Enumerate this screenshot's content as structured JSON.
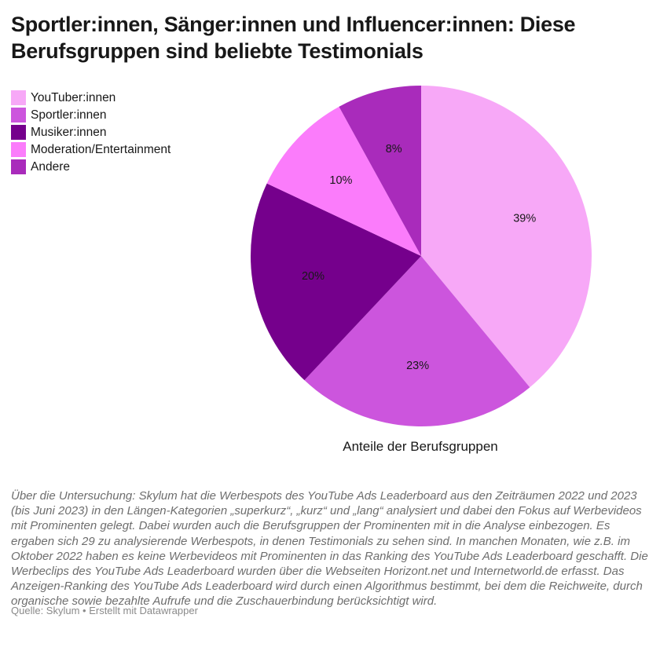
{
  "header": {
    "title": "Sportler:innen, Sänger:innen und Influencer:innen: Diese Berufsgruppen sind beliebte Testimonials"
  },
  "chart_data": {
    "type": "pie",
    "title": "Sportler:innen, Sänger:innen und Influencer:innen: Diese Berufsgruppen sind beliebte Testimonials",
    "label": "Anteile der Berufsgruppen",
    "legend_position": "top-left",
    "slices": [
      {
        "name": "YouTuber:innen",
        "value": 39,
        "label": "39%",
        "color": "#f7a8f7"
      },
      {
        "name": "Sportler:innen",
        "value": 23,
        "label": "23%",
        "color": "#cc55dd"
      },
      {
        "name": "Musiker:innen",
        "value": 20,
        "label": "20%",
        "color": "#75008c"
      },
      {
        "name": "Moderation/Entertainment",
        "value": 10,
        "label": "10%",
        "color": "#fb7cfb"
      },
      {
        "name": "Andere",
        "value": 8,
        "label": "8%",
        "color": "#a92bbb"
      }
    ]
  },
  "notes": "Über die Untersuchung: Skylum hat die Werbespots des YouTube Ads Leaderboard aus den Zeiträumen 2022 und 2023 (bis Juni 2023) in den Längen-Kategorien „superkurz“, „kurz“ und „lang“ analysiert und dabei den Fokus auf Werbevideos mit Prominenten gelegt. Dabei wurden auch die Berufsgruppen der Prominenten mit in die Analyse einbezogen. Es ergaben sich 29 zu analysierende Werbespots, in denen Testimonials zu sehen sind. In manchen Monaten, wie z.B. im Oktober 2022 haben es keine Werbevideos mit Prominenten in das Ranking des YouTube Ads Leaderboard geschafft. Die Werbeclips des YouTube Ads Leaderboard wurden über die Webseiten Horizont.net und Internetworld.de erfasst. Das Anzeigen-Ranking des YouTube Ads Leaderboard wird durch einen Algorithmus bestimmt, bei dem die Reichweite, durch organische sowie bezahlte Aufrufe und die Zuschauerbindung berücksichtigt wird.",
  "footer": "Quelle: Skylum • Erstellt mit Datawrapper"
}
